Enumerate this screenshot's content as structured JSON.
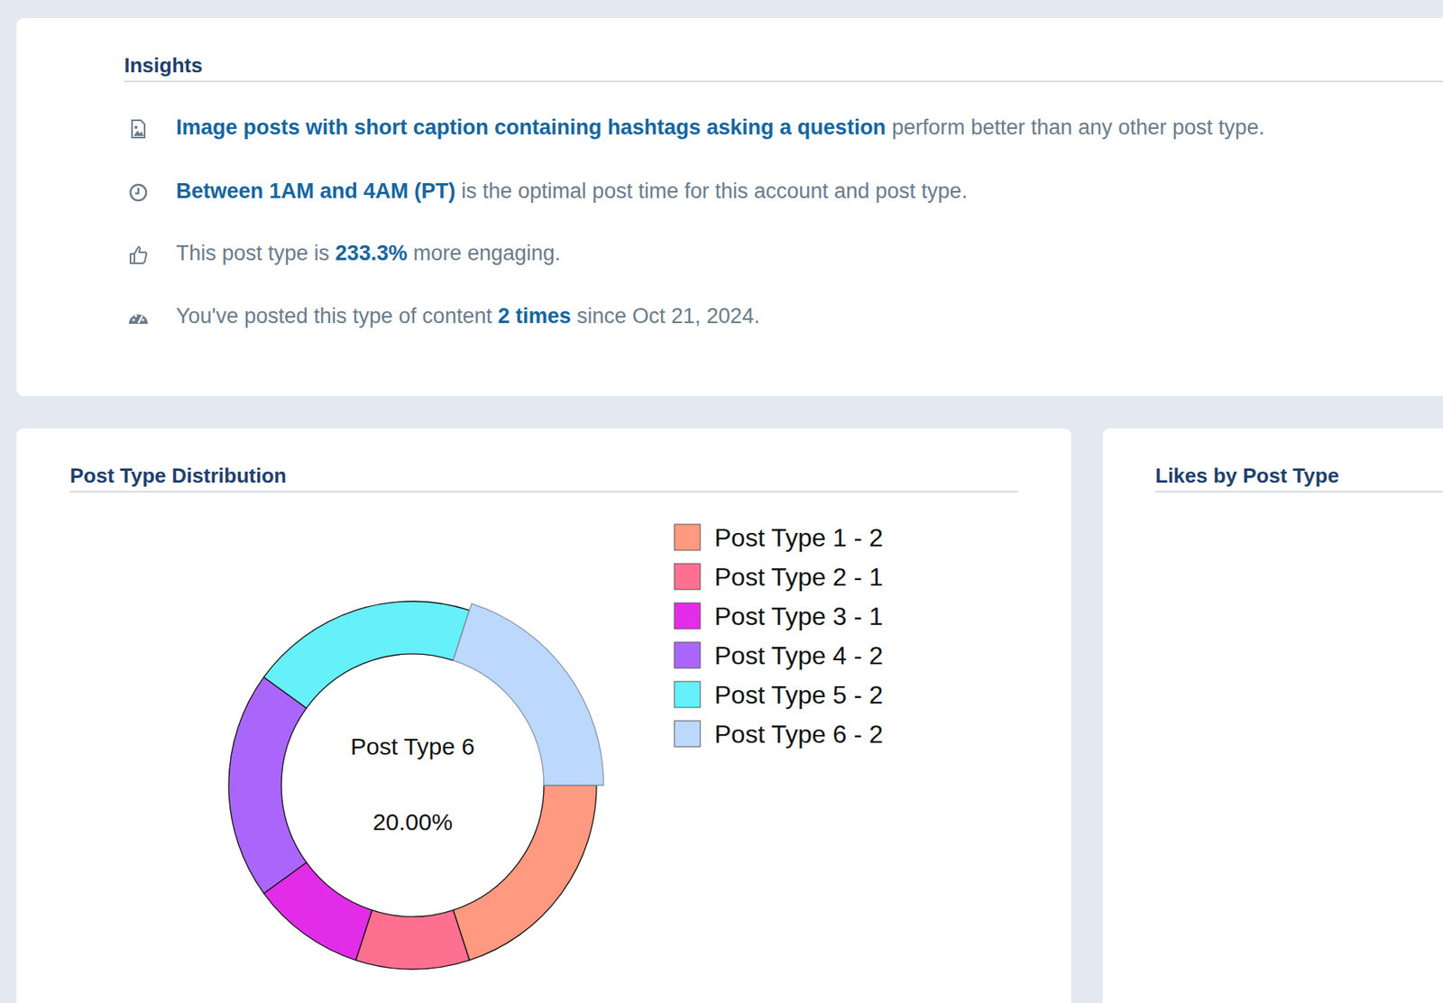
{
  "insights": {
    "title": "Insights",
    "items": [
      {
        "parts": [
          {
            "text": "Image posts with short caption containing hashtags asking a question",
            "strong": true
          },
          {
            "text": " perform better than any other post type.",
            "strong": false
          }
        ]
      },
      {
        "parts": [
          {
            "text": "Between 1AM and 4AM (PT)",
            "strong": true
          },
          {
            "text": " is the optimal post time for this account and post type.",
            "strong": false
          }
        ]
      },
      {
        "parts": [
          {
            "text": "This post type is ",
            "strong": false
          },
          {
            "text": "233.3%",
            "strong": true
          },
          {
            "text": " more engaging.",
            "strong": false
          }
        ]
      },
      {
        "parts": [
          {
            "text": "You've posted this type of content ",
            "strong": false
          },
          {
            "text": "2 times",
            "strong": true
          },
          {
            "text": " since Oct 21, 2024.",
            "strong": false
          }
        ]
      }
    ]
  },
  "chart_data": {
    "type": "pie",
    "title": "Post Type Distribution",
    "categories": [
      "Post Type 1",
      "Post Type 2",
      "Post Type 3",
      "Post Type 4",
      "Post Type 5",
      "Post Type 6"
    ],
    "values": [
      2,
      1,
      1,
      2,
      2,
      2
    ],
    "legend_labels": [
      "Post Type 1 - 2",
      "Post Type 2 - 1",
      "Post Type 3 - 1",
      "Post Type 4 - 2",
      "Post Type 5 - 2",
      "Post Type 6 - 2"
    ],
    "colors": [
      "#ff9980",
      "#ff7090",
      "#e22ce8",
      "#aa66fa",
      "#66f0fa",
      "#bcd8fd"
    ],
    "annotations": [
      "Post Type 6",
      "20.00%"
    ],
    "legend": "right"
  },
  "likes_card": {
    "title": "Likes by Post Type"
  }
}
